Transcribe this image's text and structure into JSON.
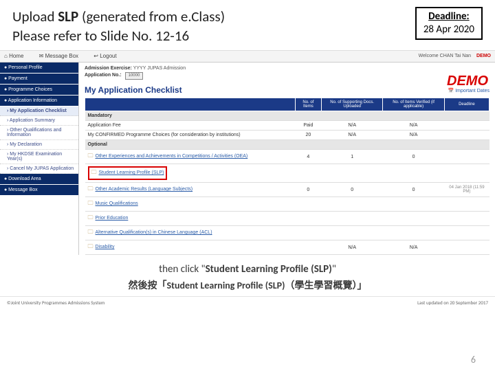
{
  "slide": {
    "title_1": "Upload ",
    "title_bold": "SLP",
    "title_2": " (generated from e.Class)",
    "title_3": "Please refer to Slide No. 12-16",
    "deadline_label": "Deadline:",
    "deadline_date": "28 Apr 2020",
    "page_number": "6"
  },
  "topbar": {
    "home": "Home",
    "msgbox": "Message Box",
    "logout": "Logout",
    "welcome": "Welcome CHAN Tai Nan",
    "demo": "DEMO"
  },
  "sidebar": {
    "items": [
      {
        "label": "Personal Profile"
      },
      {
        "label": "Payment"
      },
      {
        "label": "Programme Choices"
      },
      {
        "label": "Application Information"
      }
    ],
    "subs": [
      {
        "label": "My Application Checklist",
        "active": true
      },
      {
        "label": "Application Summary"
      },
      {
        "label": "Other Qualifications and Information"
      },
      {
        "label": "My Declaration"
      },
      {
        "label": "My HKDSE Examination Year(s)"
      },
      {
        "label": "Cancel My JUPAS Application"
      }
    ],
    "items2": [
      {
        "label": "Download Area"
      },
      {
        "label": "Message Box"
      }
    ]
  },
  "main": {
    "exercise_label": "Admission Exercise:",
    "exercise_val": "YYYY JUPAS Admission",
    "apno_label": "Application No.:",
    "apno_val": "10000",
    "demo": "DEMO",
    "checklist_title": "My Application Checklist",
    "important_dates": "Important Dates",
    "headers": [
      "",
      "No. of Items",
      "No. of Supporting Docs. Uploaded",
      "No. of Items Verified (if applicable)",
      "Deadline"
    ],
    "sections": {
      "mandatory": "Mandatory",
      "optional": "Optional"
    },
    "rows_m": [
      {
        "name": "Application Fee",
        "c1": "Paid",
        "c2": "N/A",
        "c3": "N/A",
        "dl": ""
      },
      {
        "name": "My CONFIRMED Programme Choices (for consideration by institutions)",
        "c1": "20",
        "c2": "N/A",
        "c3": "N/A",
        "dl": ""
      }
    ],
    "rows_o": [
      {
        "name": "Other Experiences and Achievements in Competitions / Activities (OEA)",
        "c1": "4",
        "c2": "1",
        "c3": "0",
        "dl": ""
      },
      {
        "name": "Student Learning Profile (SLP)",
        "c1": "",
        "c2": "",
        "c3": "",
        "dl": "",
        "slp": true
      },
      {
        "name": "Other Academic Results (Language Subjects)",
        "c1": "0",
        "c2": "0",
        "c3": "0",
        "dl": "04 Jan 2018 (11:59 PM)"
      },
      {
        "name": "Music Qualifications",
        "c1": "",
        "c2": "",
        "c3": "",
        "dl": ""
      },
      {
        "name": "Prior Education",
        "c1": "",
        "c2": "",
        "c3": "",
        "dl": ""
      },
      {
        "name": "Alternative Qualification(s) in Chinese Language (ACL)",
        "c1": "",
        "c2": "",
        "c3": "",
        "dl": ""
      },
      {
        "name": "Disability",
        "c1": "",
        "c2": "N/A",
        "c3": "N/A",
        "dl": ""
      }
    ]
  },
  "instr": {
    "en1": "then click \"",
    "en2": "Student Learning Profile (SLP)",
    "en3": "\"",
    "ch": "然後按「Student Learning Profile (SLP)（學生學習概覽）」"
  },
  "footer": {
    "left": "©Joint University Programmes Admissions System",
    "right": "Last updated on 20 September 2017"
  }
}
